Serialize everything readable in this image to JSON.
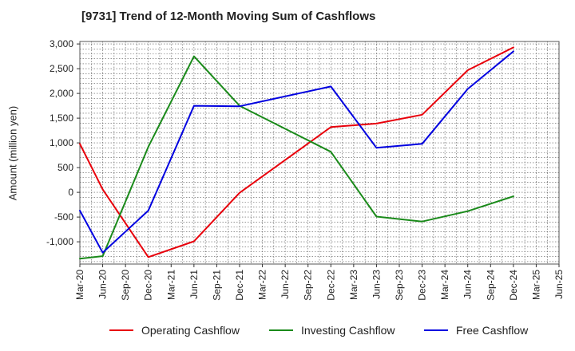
{
  "colors": {
    "operating": "#e8000b",
    "investing": "#1a8a1a",
    "free": "#0000e0",
    "grid": "#555555",
    "background": "#ffffff"
  },
  "chart_data": {
    "type": "line",
    "title": "[9731]  Trend of 12-Month Moving Sum of Cashflows",
    "ylabel": "Amount (million yen)",
    "xlabel": "",
    "categories": [
      "Mar-20",
      "Jun-20",
      "Sep-20",
      "Dec-20",
      "Mar-21",
      "Jun-21",
      "Sep-21",
      "Dec-21",
      "Mar-22",
      "Jun-22",
      "Sep-22",
      "Dec-22",
      "Mar-23",
      "Jun-23",
      "Sep-23",
      "Dec-23",
      "Mar-24",
      "Jun-24",
      "Sep-24",
      "Dec-24",
      "Mar-25",
      "Jun-25"
    ],
    "ylim": [
      -1450,
      3050
    ],
    "yticks": [
      3000,
      2500,
      2000,
      1500,
      1000,
      500,
      0,
      -500,
      -1000
    ],
    "ytick_labels": [
      "3,000",
      "2,500",
      "2,000",
      "1,500",
      "1,000",
      "500",
      "0",
      "-500",
      "-1,000"
    ],
    "grid": true,
    "legend_position": "bottom",
    "series": [
      {
        "name": "Operating Cashflow",
        "color_key": "operating",
        "points": [
          [
            0,
            980
          ],
          [
            1,
            60
          ],
          [
            3,
            -1310
          ],
          [
            5,
            -990
          ],
          [
            7,
            -10
          ],
          [
            11,
            1320
          ],
          [
            13,
            1390
          ],
          [
            15,
            1570
          ],
          [
            17,
            2470
          ],
          [
            19,
            2930
          ]
        ]
      },
      {
        "name": "Investing Cashflow",
        "color_key": "investing",
        "points": [
          [
            0,
            -1340
          ],
          [
            1,
            -1290
          ],
          [
            3,
            920
          ],
          [
            5,
            2750
          ],
          [
            7,
            1750
          ],
          [
            11,
            820
          ],
          [
            13,
            -490
          ],
          [
            15,
            -590
          ],
          [
            17,
            -380
          ],
          [
            19,
            -80
          ]
        ]
      },
      {
        "name": "Free Cashflow",
        "color_key": "free",
        "points": [
          [
            0,
            -370
          ],
          [
            1,
            -1220
          ],
          [
            3,
            -370
          ],
          [
            5,
            1750
          ],
          [
            7,
            1740
          ],
          [
            11,
            2140
          ],
          [
            13,
            900
          ],
          [
            15,
            980
          ],
          [
            17,
            2090
          ],
          [
            19,
            2850
          ]
        ]
      }
    ]
  }
}
